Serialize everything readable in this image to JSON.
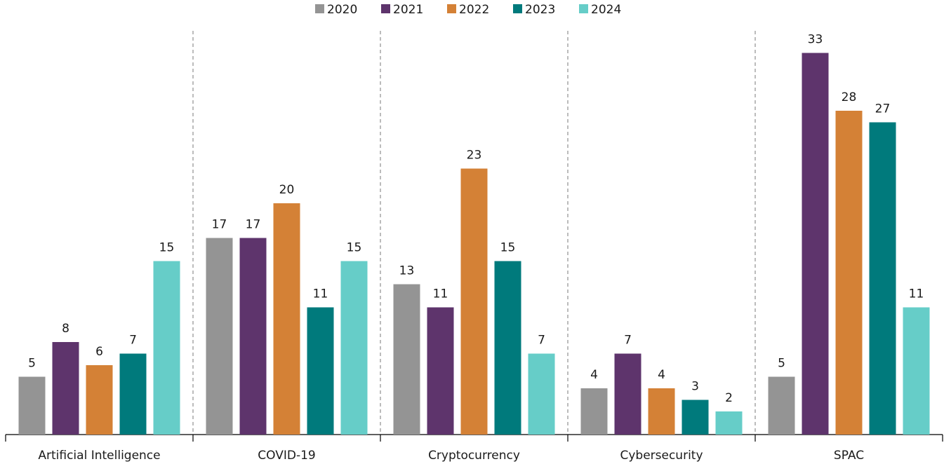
{
  "chart_data": {
    "type": "bar",
    "categories": [
      "Artificial Intelligence",
      "COVID-19",
      "Cryptocurrency",
      "Cybersecurity",
      "SPAC"
    ],
    "series": [
      {
        "name": "2020",
        "color": "#949494",
        "values": [
          5,
          17,
          13,
          4,
          5
        ]
      },
      {
        "name": "2021",
        "color": "#5e346c",
        "values": [
          8,
          17,
          11,
          7,
          33
        ]
      },
      {
        "name": "2022",
        "color": "#d48136",
        "values": [
          6,
          20,
          23,
          4,
          28
        ]
      },
      {
        "name": "2023",
        "color": "#007a7c",
        "values": [
          7,
          11,
          15,
          3,
          27
        ]
      },
      {
        "name": "2024",
        "color": "#66cdc8",
        "values": [
          15,
          15,
          7,
          2,
          11
        ]
      }
    ],
    "ylim": [
      0,
      35
    ],
    "legend": "top"
  }
}
